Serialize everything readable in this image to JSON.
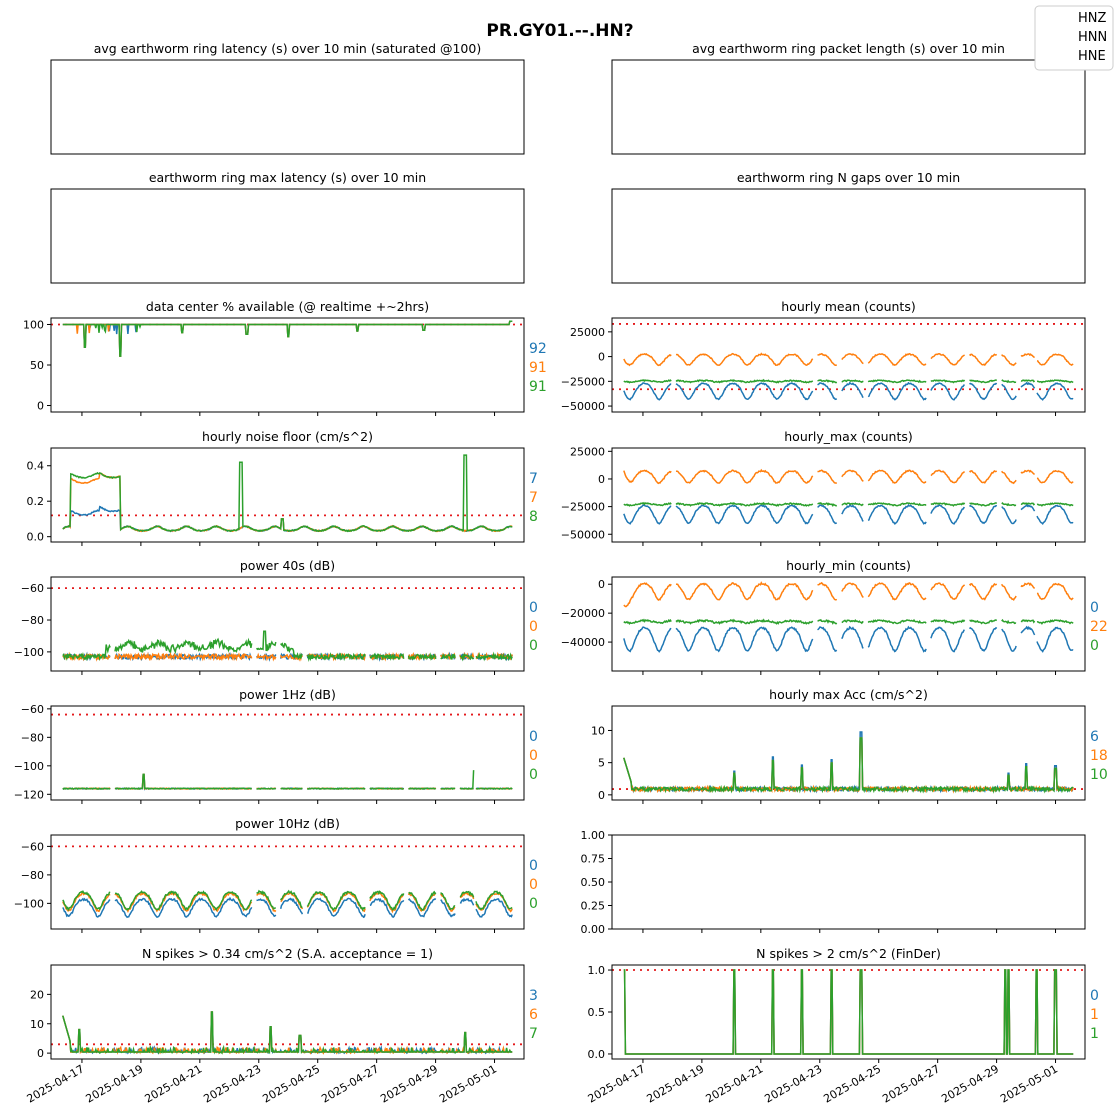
{
  "figure_title": "PR.GY01.--.HN?",
  "legend": {
    "entries": [
      "HNZ",
      "HNN",
      "HNE"
    ]
  },
  "colors": {
    "HNZ": "#1f77b4",
    "HNN": "#ff7f0e",
    "HNE": "#2ca02c",
    "threshold": "#e41a1c"
  },
  "x_ticks": [
    "2025-04-17",
    "2025-04-19",
    "2025-04-21",
    "2025-04-23",
    "2025-04-25",
    "2025-04-27",
    "2025-04-29",
    "2025-05-01"
  ],
  "chart_data": [
    {
      "id": "latency",
      "title": "avg earthworm ring latency (s)   over 10 min (saturated @100)",
      "type": "line",
      "empty": true
    },
    {
      "id": "packet",
      "title": "avg earthworm ring packet length (s)   over 10 min",
      "type": "line",
      "empty": true
    },
    {
      "id": "maxlat",
      "title": "earthworm ring max latency (s)   over 10 min",
      "type": "line",
      "empty": true
    },
    {
      "id": "ngaps",
      "title": "earthworm ring N gaps   over 10 min",
      "type": "line",
      "empty": true
    },
    {
      "id": "avail",
      "title": "data center % available (@ realtime +~2hrs)",
      "type": "line",
      "ylim": [
        -8,
        108
      ],
      "yticks": [
        0,
        50,
        100
      ],
      "ytick_labels": [
        "0",
        "50",
        "100"
      ],
      "threshold": [
        100
      ],
      "stats": [
        "92",
        "91",
        "91"
      ],
      "profile": "avail"
    },
    {
      "id": "hmean",
      "title": "hourly mean (counts)",
      "type": "line",
      "ylim": [
        -56000,
        39000
      ],
      "yticks": [
        25000,
        0,
        -25000,
        -50000
      ],
      "ytick_labels": [
        "25000",
        "0",
        "−25000",
        "−50000"
      ],
      "threshold": [
        33000,
        -33000
      ],
      "stats": [],
      "profile": "counts",
      "levels": {
        "HNZ": -35000,
        "HNN": -3000,
        "HNE": -25000
      }
    },
    {
      "id": "noise",
      "title": "hourly noise floor (cm/s^2)",
      "type": "line",
      "ylim": [
        -0.03,
        0.5
      ],
      "yticks": [
        0.0,
        0.2,
        0.4
      ],
      "ytick_labels": [
        "0.0",
        "0.2",
        "0.4"
      ],
      "threshold": [
        0.12
      ],
      "stats": [
        "7",
        "7",
        "8"
      ],
      "profile": "noise"
    },
    {
      "id": "hmax",
      "title": "hourly_max (counts)",
      "type": "line",
      "ylim": [
        -57000,
        28000
      ],
      "yticks": [
        25000,
        0,
        -25000,
        -50000
      ],
      "ytick_labels": [
        "25000",
        "0",
        "−25000",
        "−50000"
      ],
      "threshold": [],
      "stats": [],
      "profile": "counts",
      "levels": {
        "HNZ": -32000,
        "HNN": 2000,
        "HNE": -23000
      }
    },
    {
      "id": "p40",
      "title": "power 40s (dB)",
      "type": "line",
      "ylim": [
        -112,
        -53
      ],
      "yticks": [
        -60,
        -80,
        -100
      ],
      "ytick_labels": [
        "−60",
        "−80",
        "−100"
      ],
      "threshold": [
        -60
      ],
      "stats": [
        "0",
        "0",
        "0"
      ],
      "profile": "p40"
    },
    {
      "id": "hmin",
      "title": "hourly_min (counts)",
      "type": "line",
      "ylim": [
        -60000,
        5000
      ],
      "yticks": [
        0,
        -20000,
        -40000
      ],
      "ytick_labels": [
        "0",
        "−20000",
        "−40000"
      ],
      "threshold": [],
      "stats": [
        "0",
        "22",
        "0"
      ],
      "profile": "counts",
      "levels": {
        "HNZ": -38000,
        "HNN": -5000,
        "HNE": -26000
      }
    },
    {
      "id": "p1",
      "title": "power 1Hz (dB)",
      "type": "line",
      "ylim": [
        -124,
        -58
      ],
      "yticks": [
        -60,
        -80,
        -100,
        -120
      ],
      "ytick_labels": [
        "−60",
        "−80",
        "−100",
        "−120"
      ],
      "threshold": [
        -64
      ],
      "stats": [
        "0",
        "0",
        "0"
      ],
      "profile": "p1"
    },
    {
      "id": "acc",
      "title": "hourly max Acc (cm/s^2)",
      "type": "line",
      "ylim": [
        -0.8,
        13.8
      ],
      "yticks": [
        0,
        5,
        10
      ],
      "ytick_labels": [
        "0",
        "5",
        "10"
      ],
      "threshold": [
        0.9
      ],
      "stats": [
        "6",
        "18",
        "10"
      ],
      "profile": "acc"
    },
    {
      "id": "p10",
      "title": "power 10Hz (dB)",
      "type": "line",
      "ylim": [
        -118,
        -52
      ],
      "yticks": [
        -60,
        -80,
        -100
      ],
      "ytick_labels": [
        "−60",
        "−80",
        "−100"
      ],
      "threshold": [
        -60
      ],
      "stats": [
        "0",
        "0",
        "0"
      ],
      "profile": "p10"
    },
    {
      "id": "blank",
      "title": "",
      "type": "line",
      "ylim": [
        0,
        1
      ],
      "yticks": [
        0,
        0.25,
        0.5,
        0.75,
        1.0
      ],
      "ytick_labels": [
        "0.00",
        "0.25",
        "0.50",
        "0.75",
        "1.00"
      ],
      "threshold": [],
      "stats": [],
      "profile": "none"
    },
    {
      "id": "spk034",
      "title": "N spikes > 0.34 cm/s^2 (S.A. acceptance = 1)",
      "type": "line",
      "ylim": [
        -2,
        30
      ],
      "yticks": [
        0,
        10,
        20
      ],
      "ytick_labels": [
        "0",
        "10",
        "20"
      ],
      "threshold": [
        3
      ],
      "stats": [
        "3",
        "6",
        "7"
      ],
      "profile": "spk034"
    },
    {
      "id": "spk2",
      "title": "N spikes > 2 cm/s^2 (FinDer)",
      "type": "line",
      "ylim": [
        -0.06,
        1.06
      ],
      "yticks": [
        0.0,
        0.5,
        1.0
      ],
      "ytick_labels": [
        "0.0",
        "0.5",
        "1.0"
      ],
      "threshold": [
        1.0
      ],
      "stats": [
        "0",
        "1",
        "1"
      ],
      "profile": "spk2"
    }
  ]
}
